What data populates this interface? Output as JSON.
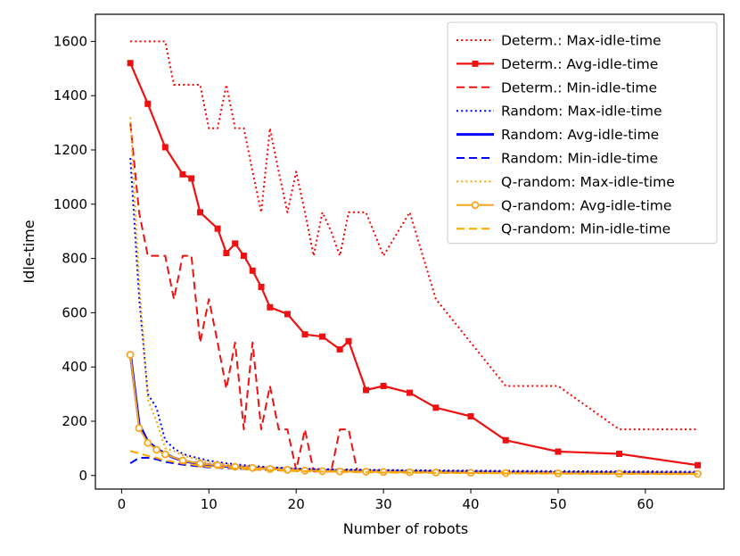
{
  "chart_data": {
    "type": "line",
    "title": "",
    "xlabel": "Number of robots",
    "ylabel": "Idle-time",
    "xlim": [
      -3,
      69
    ],
    "ylim": [
      -50,
      1700
    ],
    "xticks": [
      0,
      10,
      20,
      30,
      40,
      50,
      60
    ],
    "yticks": [
      0,
      200,
      400,
      600,
      800,
      1000,
      1200,
      1400,
      1600
    ],
    "grid": false,
    "legend_position": "top-right",
    "series": [
      {
        "name": "Determ.: Max-idle-time",
        "color": "#ff0000",
        "style": "dotted",
        "marker": "none",
        "width": 2,
        "x": [
          1,
          2,
          3,
          4,
          5,
          6,
          7,
          8,
          9,
          10,
          11,
          12,
          13,
          14,
          15,
          16,
          17,
          18,
          19,
          20,
          21,
          22,
          23,
          24,
          25,
          26,
          27,
          28,
          30,
          33,
          36,
          40,
          44,
          50,
          57,
          66
        ],
        "y": [
          1600,
          1600,
          1600,
          1600,
          1600,
          1440,
          1440,
          1440,
          1440,
          1280,
          1280,
          1440,
          1280,
          1280,
          1120,
          970,
          1280,
          1120,
          970,
          1120,
          970,
          810,
          970,
          900,
          810,
          970,
          970,
          970,
          810,
          970,
          650,
          490,
          330,
          330,
          170,
          170
        ]
      },
      {
        "name": "Determ.: Avg-idle-time",
        "color": "#ee1111",
        "style": "solid",
        "marker": "square",
        "width": 2.2,
        "x": [
          1,
          3,
          5,
          7,
          8,
          9,
          11,
          12,
          13,
          14,
          15,
          16,
          17,
          19,
          21,
          23,
          25,
          26,
          28,
          30,
          33,
          36,
          40,
          44,
          50,
          57,
          66
        ],
        "y": [
          1520,
          1370,
          1210,
          1110,
          1095,
          970,
          910,
          820,
          855,
          810,
          755,
          695,
          620,
          595,
          520,
          512,
          465,
          495,
          315,
          330,
          305,
          250,
          218,
          130,
          88,
          80,
          38
        ]
      },
      {
        "name": "Determ.: Min-idle-time",
        "color": "#ee1111",
        "style": "dashed",
        "marker": "none",
        "width": 2,
        "x": [
          1,
          2,
          3,
          4,
          5,
          6,
          7,
          8,
          9,
          10,
          11,
          12,
          13,
          14,
          15,
          16,
          17,
          18,
          19,
          20,
          21,
          22,
          23,
          24,
          25,
          26,
          27,
          28
        ],
        "y": [
          1300,
          970,
          810,
          810,
          810,
          650,
          810,
          810,
          490,
          650,
          490,
          320,
          490,
          170,
          490,
          170,
          330,
          170,
          170,
          20,
          170,
          15,
          15,
          15,
          170,
          170,
          15,
          15
        ]
      },
      {
        "name": "Random: Max-idle-time",
        "color": "#0000ff",
        "style": "dotted",
        "marker": "none",
        "width": 2,
        "x": [
          1,
          2,
          3,
          4,
          5,
          6,
          7,
          8,
          10,
          12,
          15,
          20,
          30,
          40,
          50,
          66
        ],
        "y": [
          1170,
          660,
          300,
          250,
          130,
          100,
          80,
          70,
          55,
          45,
          35,
          25,
          20,
          18,
          16,
          14
        ]
      },
      {
        "name": "Random: Avg-idle-time",
        "color": "#0000ff",
        "style": "solid",
        "marker": "none",
        "width": 3,
        "x": [
          1,
          2,
          3,
          4,
          5,
          6,
          7,
          8,
          10,
          12,
          15,
          20,
          25,
          30,
          40,
          50,
          66
        ],
        "y": [
          450,
          190,
          125,
          100,
          80,
          65,
          55,
          48,
          40,
          34,
          28,
          22,
          18,
          16,
          13,
          11,
          9
        ]
      },
      {
        "name": "Random: Min-idle-time",
        "color": "#0000ff",
        "style": "dashed",
        "marker": "none",
        "width": 2,
        "x": [
          1,
          2,
          3,
          4,
          5,
          7,
          10,
          15,
          20,
          30,
          40,
          50,
          66
        ],
        "y": [
          45,
          65,
          65,
          60,
          50,
          40,
          30,
          22,
          17,
          12,
          10,
          8,
          6
        ]
      },
      {
        "name": "Q-random: Max-idle-time",
        "color": "#ffa500",
        "style": "dotted",
        "marker": "none",
        "width": 2,
        "x": [
          1,
          2,
          3,
          4,
          5,
          6,
          7,
          8,
          10,
          12,
          15,
          20,
          30,
          40,
          50,
          66
        ],
        "y": [
          1320,
          720,
          280,
          200,
          100,
          90,
          75,
          65,
          50,
          42,
          33,
          25,
          18,
          15,
          13,
          11
        ]
      },
      {
        "name": "Q-random: Avg-idle-time",
        "color": "#f5a623",
        "style": "solid",
        "marker": "circle",
        "width": 2,
        "x": [
          1,
          2,
          3,
          4,
          5,
          7,
          9,
          11,
          13,
          15,
          17,
          19,
          21,
          23,
          25,
          28,
          30,
          33,
          36,
          40,
          44,
          50,
          57,
          66
        ],
        "y": [
          445,
          175,
          120,
          95,
          78,
          55,
          44,
          38,
          32,
          28,
          24,
          21,
          18,
          16,
          15,
          14,
          13,
          12,
          11,
          10,
          9,
          8,
          7,
          6
        ]
      },
      {
        "name": "Q-random: Min-idle-time",
        "color": "#ffa500",
        "style": "dashed",
        "marker": "none",
        "width": 2,
        "x": [
          1,
          2,
          3,
          4,
          5,
          7,
          10,
          15,
          20,
          30,
          40,
          50,
          66
        ],
        "y": [
          90,
          82,
          72,
          65,
          55,
          45,
          32,
          22,
          16,
          11,
          9,
          7,
          5
        ]
      }
    ]
  }
}
